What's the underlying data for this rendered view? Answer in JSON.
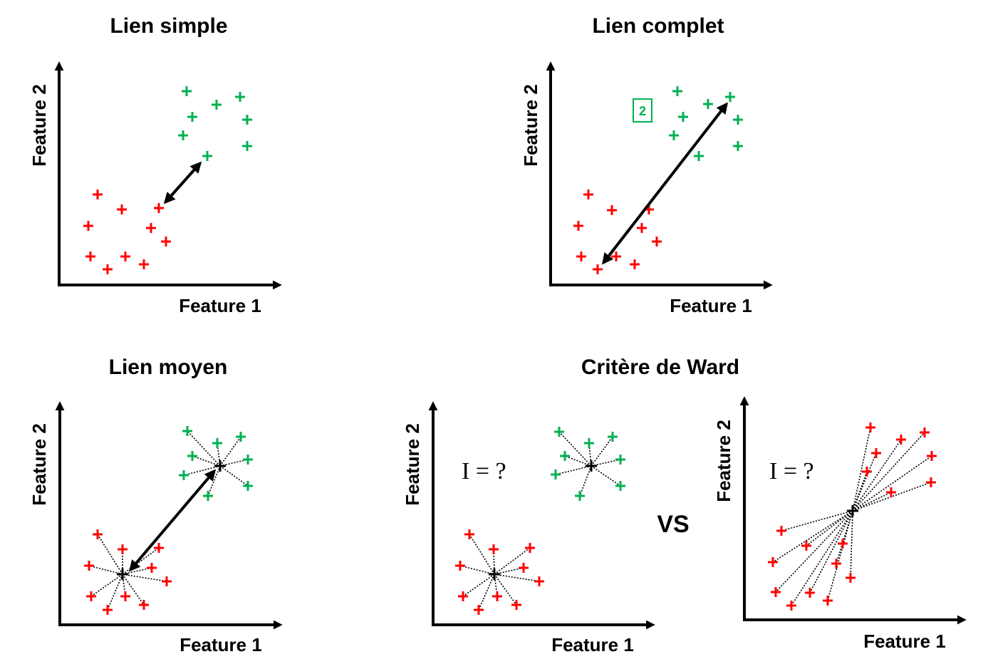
{
  "colors": {
    "cluster_a": "#ff0000",
    "cluster_b": "#00b050",
    "centroid": "#000000",
    "axis": "#000000"
  },
  "panels": {
    "single": {
      "title": "Lien simple",
      "xlabel": "Feature 1",
      "ylabel": "Feature 2"
    },
    "complete": {
      "title": "Lien complet",
      "xlabel": "Feature 1",
      "ylabel": "Feature 2",
      "badge": "2"
    },
    "average": {
      "title": "Lien moyen",
      "xlabel": "Feature 1",
      "ylabel": "Feature 2"
    },
    "ward": {
      "title": "Critère de Ward",
      "left": {
        "xlabel": "Feature 1",
        "ylabel": "Feature 2",
        "formula": "I = ?"
      },
      "vs": "VS",
      "right": {
        "xlabel": "Feature 1",
        "ylabel": "Feature 2",
        "formula": "I = ?"
      }
    }
  }
}
